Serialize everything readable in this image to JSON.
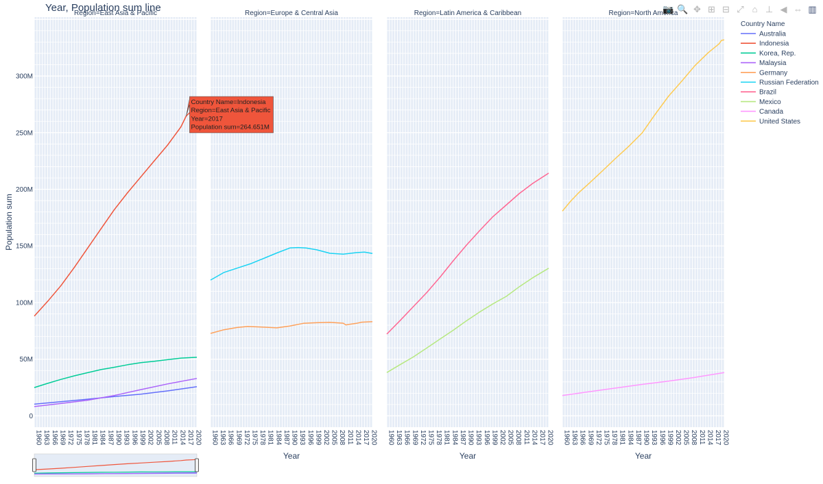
{
  "title": "Year, Population sum line",
  "toolbar": {
    "buttons": [
      {
        "name": "camera-icon",
        "glyph": "📷"
      },
      {
        "name": "zoom-icon",
        "glyph": "🔍"
      },
      {
        "name": "pan-icon",
        "glyph": "✥"
      },
      {
        "name": "zoom-in-icon",
        "glyph": "⊞"
      },
      {
        "name": "zoom-out-icon",
        "glyph": "⊟"
      },
      {
        "name": "autoscale-icon",
        "glyph": "⤢"
      },
      {
        "name": "home-icon",
        "glyph": "⌂"
      },
      {
        "name": "spike-lines-icon",
        "glyph": "⊥"
      },
      {
        "name": "hover-closest-icon",
        "glyph": "◀"
      },
      {
        "name": "hover-compare-icon",
        "glyph": "⇔"
      },
      {
        "name": "plotly-logo-icon",
        "glyph": "▥"
      }
    ]
  },
  "chart_data": {
    "type": "line",
    "xlabel": "Year",
    "ylabel": "Population sum",
    "legend": {
      "title": "Country Name",
      "placement": "right"
    },
    "ylim": [
      -10000000,
      352000000
    ],
    "xlim": [
      1960,
      2021
    ],
    "x_tick_labels": [
      "1960",
      "1963",
      "1966",
      "1969",
      "1972",
      "1975",
      "1978",
      "1981",
      "1984",
      "1987",
      "1990",
      "1993",
      "1996",
      "1999",
      "2002",
      "2005",
      "2008",
      "2011",
      "2014",
      "2017",
      "2020"
    ],
    "y_ticks": [
      {
        "value": 0,
        "label": "0"
      },
      {
        "value": 50000000,
        "label": "50M"
      },
      {
        "value": 100000000,
        "label": "100M"
      },
      {
        "value": 150000000,
        "label": "150M"
      },
      {
        "value": 200000000,
        "label": "200M"
      },
      {
        "value": 250000000,
        "label": "250M"
      },
      {
        "value": 300000000,
        "label": "300M"
      }
    ],
    "grid": true,
    "panels": [
      {
        "title": "Region=East Asia & Pacific",
        "series": [
          "Australia",
          "Indonesia",
          "Korea, Rep.",
          "Malaysia"
        ]
      },
      {
        "title": "Region=Europe & Central Asia",
        "series": [
          "Germany",
          "Russian Federation"
        ]
      },
      {
        "title": "Region=Latin America & Caribbean",
        "series": [
          "Brazil",
          "Mexico"
        ]
      },
      {
        "title": "Region=North America",
        "series": [
          "Canada",
          "United States"
        ]
      }
    ],
    "series": [
      {
        "name": "Australia",
        "color": "#636efa",
        "points": [
          [
            1960,
            10.3
          ],
          [
            1970,
            12.5
          ],
          [
            1980,
            14.7
          ],
          [
            1990,
            17.1
          ],
          [
            2000,
            19.2
          ],
          [
            2010,
            22.0
          ],
          [
            2021,
            25.7
          ]
        ]
      },
      {
        "name": "Indonesia",
        "color": "#ef553b",
        "points": [
          [
            1960,
            88
          ],
          [
            1965,
            101
          ],
          [
            1970,
            115
          ],
          [
            1975,
            131
          ],
          [
            1980,
            148
          ],
          [
            1985,
            165
          ],
          [
            1990,
            182
          ],
          [
            1995,
            197
          ],
          [
            2000,
            211
          ],
          [
            2005,
            225
          ],
          [
            2010,
            239
          ],
          [
            2015,
            255
          ],
          [
            2017,
            264.651
          ],
          [
            2021,
            273.8
          ]
        ]
      },
      {
        "name": "Korea, Rep.",
        "color": "#00cc96",
        "points": [
          [
            1960,
            25.0
          ],
          [
            1965,
            28.7
          ],
          [
            1970,
            32.2
          ],
          [
            1975,
            35.3
          ],
          [
            1980,
            38.1
          ],
          [
            1985,
            40.8
          ],
          [
            1990,
            42.9
          ],
          [
            1995,
            45.1
          ],
          [
            2000,
            47.0
          ],
          [
            2005,
            48.2
          ],
          [
            2010,
            49.6
          ],
          [
            2015,
            51.0
          ],
          [
            2021,
            51.7
          ]
        ]
      },
      {
        "name": "Malaysia",
        "color": "#ab63fa",
        "points": [
          [
            1960,
            8.2
          ],
          [
            1970,
            10.9
          ],
          [
            1980,
            13.8
          ],
          [
            1990,
            18.0
          ],
          [
            2000,
            23.2
          ],
          [
            2010,
            28.2
          ],
          [
            2021,
            33.0
          ]
        ]
      },
      {
        "name": "Germany",
        "color": "#ffa15a",
        "points": [
          [
            1960,
            72.8
          ],
          [
            1965,
            76.0
          ],
          [
            1970,
            78.0
          ],
          [
            1974,
            78.9
          ],
          [
            1980,
            78.3
          ],
          [
            1985,
            77.7
          ],
          [
            1990,
            79.4
          ],
          [
            1995,
            81.7
          ],
          [
            2000,
            82.2
          ],
          [
            2005,
            82.5
          ],
          [
            2010,
            81.8
          ],
          [
            2011,
            80.3
          ],
          [
            2015,
            81.7
          ],
          [
            2017,
            82.7
          ],
          [
            2021,
            83.1
          ]
        ]
      },
      {
        "name": "Russian Federation",
        "color": "#19d3f3",
        "points": [
          [
            1960,
            119.9
          ],
          [
            1965,
            126.5
          ],
          [
            1970,
            130.4
          ],
          [
            1975,
            134.2
          ],
          [
            1980,
            139.0
          ],
          [
            1985,
            143.8
          ],
          [
            1990,
            148.3
          ],
          [
            1993,
            148.6
          ],
          [
            1996,
            148.2
          ],
          [
            2000,
            146.6
          ],
          [
            2005,
            143.5
          ],
          [
            2010,
            142.8
          ],
          [
            2015,
            144.1
          ],
          [
            2018,
            144.5
          ],
          [
            2021,
            143.4
          ]
        ]
      },
      {
        "name": "Brazil",
        "color": "#ff6692",
        "points": [
          [
            1960,
            72.2
          ],
          [
            1965,
            84.1
          ],
          [
            1970,
            96.4
          ],
          [
            1975,
            108.7
          ],
          [
            1980,
            122.3
          ],
          [
            1985,
            136.8
          ],
          [
            1990,
            150.7
          ],
          [
            1995,
            163.5
          ],
          [
            2000,
            175.9
          ],
          [
            2005,
            186.1
          ],
          [
            2010,
            196.4
          ],
          [
            2015,
            205.2
          ],
          [
            2021,
            214.3
          ]
        ]
      },
      {
        "name": "Mexico",
        "color": "#b6e880",
        "points": [
          [
            1960,
            38.2
          ],
          [
            1965,
            45.2
          ],
          [
            1970,
            52.0
          ],
          [
            1975,
            59.8
          ],
          [
            1980,
            67.7
          ],
          [
            1985,
            75.5
          ],
          [
            1990,
            83.9
          ],
          [
            1995,
            91.7
          ],
          [
            2000,
            98.9
          ],
          [
            2005,
            105.4
          ],
          [
            2010,
            114.1
          ],
          [
            2015,
            121.9
          ],
          [
            2021,
            130.3
          ]
        ]
      },
      {
        "name": "Canada",
        "color": "#ff97ff",
        "points": [
          [
            1960,
            17.9
          ],
          [
            1970,
            21.3
          ],
          [
            1980,
            24.5
          ],
          [
            1990,
            27.8
          ],
          [
            2000,
            30.7
          ],
          [
            2010,
            34.0
          ],
          [
            2021,
            38.2
          ]
        ]
      },
      {
        "name": "United States",
        "color": "#fecb52",
        "points": [
          [
            1960,
            180.7
          ],
          [
            1963,
            189.2
          ],
          [
            1966,
            196.6
          ],
          [
            1970,
            205.1
          ],
          [
            1975,
            216.0
          ],
          [
            1980,
            227.2
          ],
          [
            1985,
            237.9
          ],
          [
            1990,
            249.6
          ],
          [
            1995,
            266.3
          ],
          [
            2000,
            282.2
          ],
          [
            2005,
            295.5
          ],
          [
            2010,
            309.3
          ],
          [
            2015,
            320.7
          ],
          [
            2019,
            328.3
          ],
          [
            2020,
            331.5
          ],
          [
            2021,
            331.9
          ]
        ]
      }
    ],
    "hover": {
      "series": "Indonesia",
      "x": 2017,
      "lines": [
        "Country Name=Indonesia",
        "Region=East Asia & Pacific",
        "Year=2017",
        "Population sum=264.651M"
      ]
    },
    "range_slider": {
      "panel": 0,
      "range": [
        1960,
        2021
      ]
    }
  }
}
